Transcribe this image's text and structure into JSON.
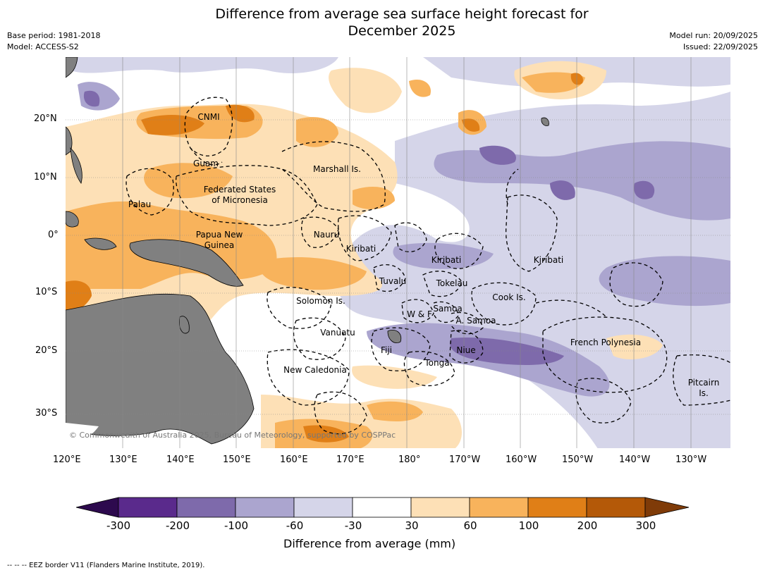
{
  "title_line1": "Difference from average sea surface height forecast for",
  "title_line2": "December 2025",
  "meta_left": {
    "line1": "Base period: 1981-2018",
    "line2": "Model: ACCESS-S2"
  },
  "meta_right": {
    "line1": "Model run: 20/09/2025",
    "line2": "Issued: 22/09/2025"
  },
  "lat_ticks": [
    "20°N",
    "10°N",
    "0°",
    "10°S",
    "20°S",
    "30°S"
  ],
  "lon_ticks": [
    "120°E",
    "130°E",
    "140°E",
    "150°E",
    "160°E",
    "170°E",
    "180°",
    "170°W",
    "160°W",
    "150°W",
    "140°W",
    "130°W"
  ],
  "region_labels": {
    "cnmi": "CNMI",
    "guam": "Guam",
    "marshall": "Marshall Is.",
    "fsm_1": "Federated States",
    "fsm_2": "of Micronesia",
    "palau": "Palau",
    "png_1": "Papua New",
    "png_2": "Guinea",
    "nauru": "Nauru",
    "kiribati_w": "Kiribati",
    "kiribati_c": "Kiribati",
    "kiribati_e": "Kiribati",
    "tuvalu": "Tuvalu",
    "tokelau": "Tokelau",
    "cook": "Cook Is.",
    "solomon": "Solomon Is.",
    "samoa": "Samoa",
    "wf": "W & F",
    "asamoa": "A. Samoa",
    "vanuatu": "Vanuatu",
    "fiji": "Fiji",
    "niue": "Niue",
    "tonga": "Tonga",
    "frenchpoly": "French Polynesia",
    "newcal": "New Caledonia",
    "pitcairn_1": "Pitcairn",
    "pitcairn_2": "Is."
  },
  "copyright": "© Commonwealth of Australia 2025, Bureau of Meteorology, supported by COSPPac",
  "colorbar": {
    "title": "Difference from average (mm)",
    "labels": [
      "-300",
      "-200",
      "-100",
      "-60",
      "-30",
      "30",
      "60",
      "100",
      "200",
      "300"
    ],
    "colors": [
      "#2d0a4e",
      "#5a2a8c",
      "#7e6aab",
      "#aba5cf",
      "#d5d5e9",
      "#ffffff",
      "#fde0b6",
      "#f8b35c",
      "#e07f17",
      "#b45908",
      "#7f3b08"
    ]
  },
  "footnote": "-- -- -- EEZ border V11 (Flanders Marine Institute, 2019).",
  "colors": {
    "land": "#808080",
    "grid": "#888888"
  }
}
